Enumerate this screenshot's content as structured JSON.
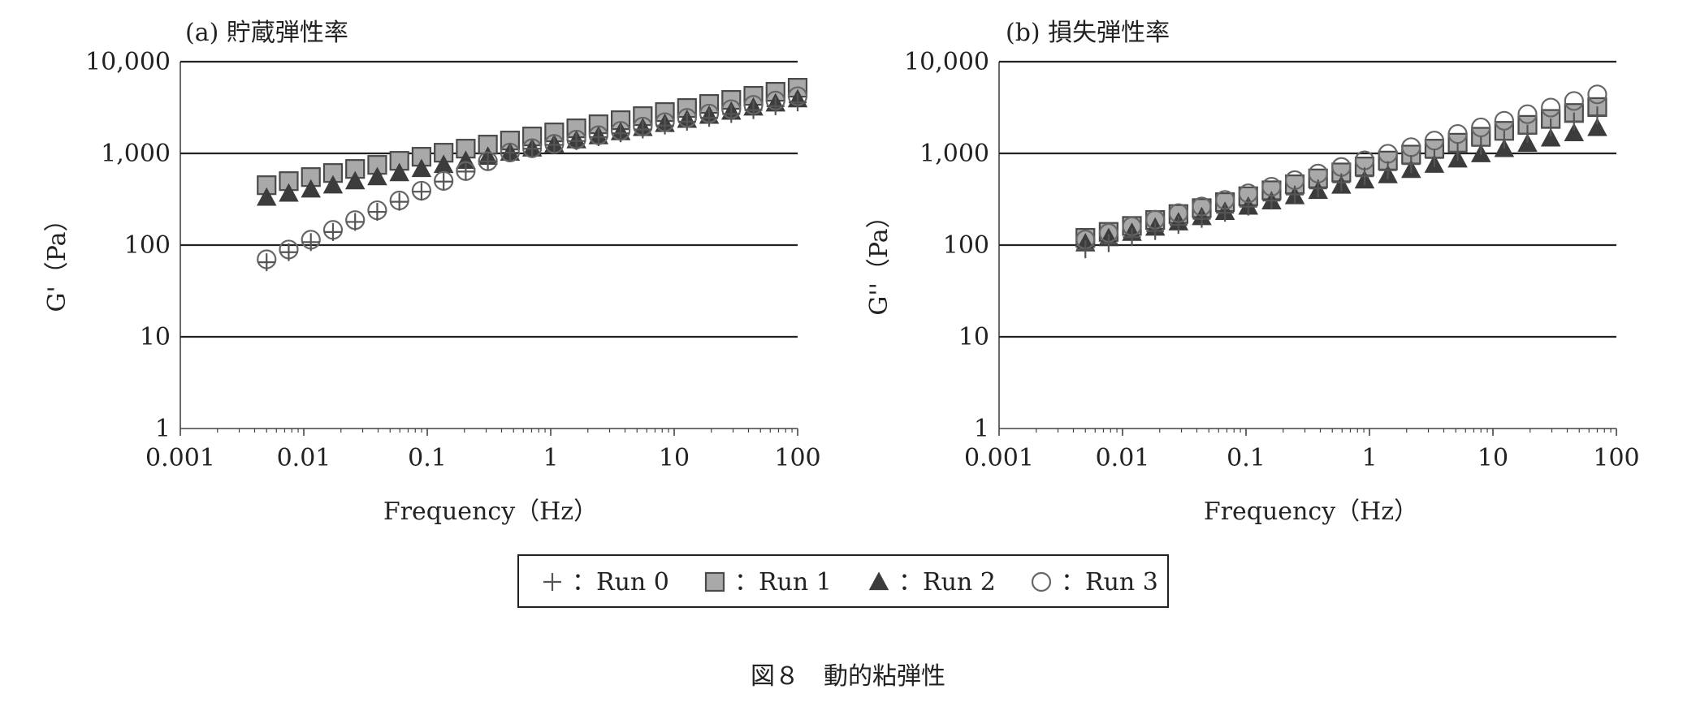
{
  "figure_caption": "図８　動的粘弾性",
  "legend": {
    "items": [
      {
        "marker": "plus",
        "label": "：Run 0"
      },
      {
        "marker": "square",
        "label": "：Run 1"
      },
      {
        "marker": "triangle",
        "label": "：Run 2"
      },
      {
        "marker": "circle",
        "label": "：Run 3"
      }
    ]
  },
  "colors": {
    "gridline": "#222222",
    "axis": "#444444",
    "square_fill": "#a9a9a9",
    "square_stroke": "#4a4a4a",
    "triangle_fill": "#3c3c3c",
    "circle_stroke": "#666666",
    "plus_stroke": "#555555"
  },
  "chart_data": [
    {
      "type": "scatter",
      "title": "(a) 貯蔵弾性率",
      "xlabel": "Frequency（Hz）",
      "ylabel": "G'（Pa）",
      "xscale": "log",
      "yscale": "log",
      "xlim": [
        0.001,
        100
      ],
      "ylim": [
        1,
        10000
      ],
      "x_ticks": [
        "0.001",
        "0.01",
        "0.1",
        "1",
        "10",
        "100"
      ],
      "y_ticks": [
        "1",
        "10",
        "100",
        "1,000",
        "10,000"
      ],
      "grid": "horizontal",
      "series": [
        {
          "name": "Run 0",
          "marker": "plus",
          "x_range": [
            0.005,
            100
          ],
          "points": 25,
          "y_start": 65,
          "y_end": 3600
        },
        {
          "name": "Run 1",
          "marker": "square",
          "x_range": [
            0.005,
            100
          ],
          "points": 25,
          "y_start": 450,
          "y_end": 5200
        },
        {
          "name": "Run 2",
          "marker": "triangle",
          "x_range": [
            0.005,
            100
          ],
          "points": 25,
          "y_start": 330,
          "y_end": 3900
        },
        {
          "name": "Run 3",
          "marker": "circle",
          "x_range": [
            0.005,
            100
          ],
          "points": 25,
          "y_start": 70,
          "y_end": 4200
        }
      ]
    },
    {
      "type": "scatter",
      "title": "(b) 損失弾性率",
      "xlabel": "Frequency（Hz）",
      "ylabel": "G''（Pa）",
      "xscale": "log",
      "yscale": "log",
      "xlim": [
        0.001,
        100
      ],
      "ylim": [
        1,
        10000
      ],
      "x_ticks": [
        "0.001",
        "0.01",
        "0.1",
        "1",
        "10",
        "100"
      ],
      "y_ticks": [
        "1",
        "10",
        "100",
        "1,000",
        "10,000"
      ],
      "grid": "horizontal",
      "series": [
        {
          "name": "Run 0",
          "marker": "plus",
          "x_range": [
            0.005,
            70
          ],
          "points": 23,
          "y_start": 90,
          "y_end": 2600
        },
        {
          "name": "Run 1",
          "marker": "square",
          "x_range": [
            0.005,
            70
          ],
          "points": 23,
          "y_start": 120,
          "y_end": 3200
        },
        {
          "name": "Run 2",
          "marker": "triangle",
          "x_range": [
            0.005,
            70
          ],
          "points": 23,
          "y_start": 105,
          "y_end": 1900
        },
        {
          "name": "Run 3",
          "marker": "circle",
          "x_range": [
            0.005,
            70
          ],
          "points": 23,
          "y_start": 115,
          "y_end": 4400
        }
      ]
    }
  ]
}
